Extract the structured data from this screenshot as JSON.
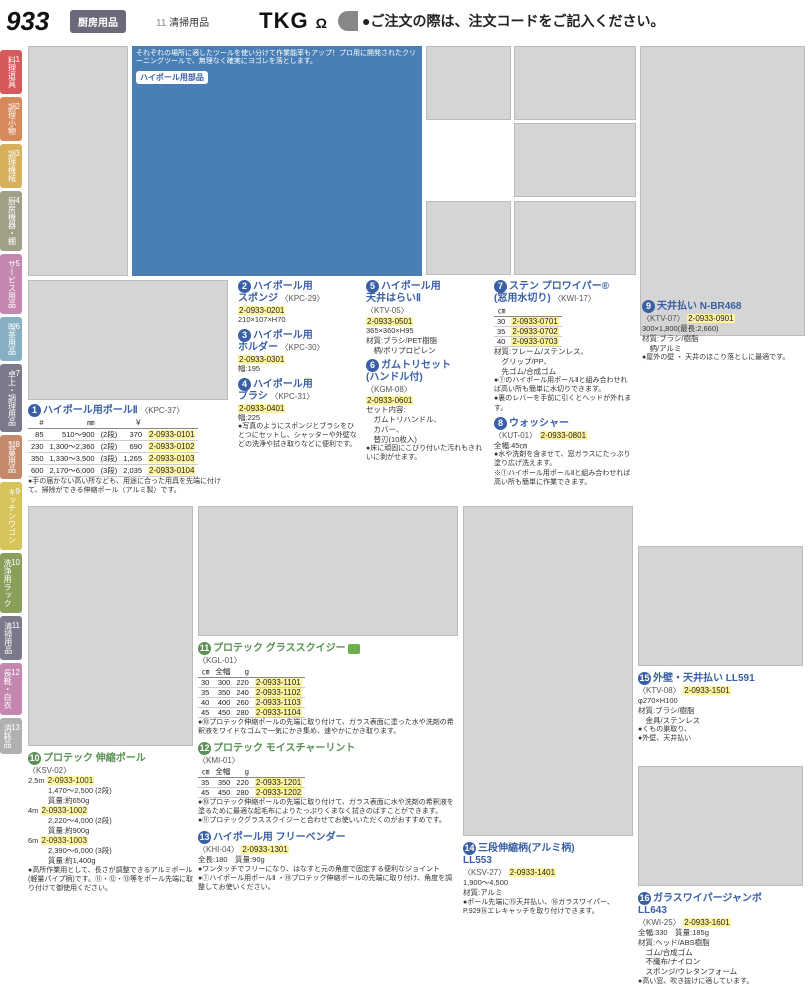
{
  "header": {
    "page_num": "933",
    "category": "厨房用品",
    "sub_num": "11",
    "sub_label": "清掃用品",
    "brand": "TKG",
    "notice": "●ご注文の際は、注文コードをご記入ください。"
  },
  "sidebar": [
    {
      "n": "1",
      "label": "料理道具",
      "color": "#d65a5a"
    },
    {
      "n": "2",
      "label": "調理小物",
      "color": "#d68a5a"
    },
    {
      "n": "3",
      "label": "調理機械",
      "color": "#d6b05a"
    },
    {
      "n": "4",
      "label": "厨房機器・棚",
      "color": "#a0a088"
    },
    {
      "n": "5",
      "label": "サービス用品",
      "color": "#c488b0"
    },
    {
      "n": "6",
      "label": "喫茶用品",
      "color": "#88b0c4"
    },
    {
      "n": "7",
      "label": "卓上・調理用品",
      "color": "#7a7a8a"
    },
    {
      "n": "8",
      "label": "製菓用品",
      "color": "#c4886a"
    },
    {
      "n": "9",
      "label": "キッチンワゴン",
      "color": "#d6c45a"
    },
    {
      "n": "10",
      "label": "洗浄用ラック",
      "color": "#8aa05a"
    },
    {
      "n": "11",
      "label": "清掃用品",
      "color": "#7a7a8a"
    },
    {
      "n": "12",
      "label": "長靴・白衣",
      "color": "#c488b0"
    },
    {
      "n": "13",
      "label": "消耗品",
      "color": "#b0b0b0"
    }
  ],
  "diagram": {
    "intro": "それぞれの場所に適したツールを使い分けて作業能率もアップ！プロ用に開発されたクリーニングツールで、無理なく確実にヨゴレを落とします。",
    "label_parts": "ハイポール用部品"
  },
  "products": {
    "p1": {
      "num": "1",
      "title": "ハイポール用ポールⅡ",
      "sub": "〈KPC-37〉",
      "table_head": [
        "#",
        "㎜",
        "",
        "￥",
        ""
      ],
      "rows": [
        [
          "85",
          "510～900",
          "(2段)",
          "370",
          "2-0933-0101"
        ],
        [
          "230",
          "1,300～2,360",
          "(2段)",
          "690",
          "2-0933-0102"
        ],
        [
          "350",
          "1,330～3,500",
          "(3段)",
          "1,265",
          "2-0933-0103"
        ],
        [
          "600",
          "2,170～6,000",
          "(3段)",
          "2,035",
          "2-0933-0104"
        ]
      ],
      "note": "●手の届かない高い所なども、用途に合った用具を先端に付けて、掃除ができる伸縮ポール（アルミ製）です。"
    },
    "p2": {
      "num": "2",
      "title": "ハイポール用\nスポンジ",
      "sub": "〈KPC-29〉",
      "code": "2-0933-0201",
      "spec": "210×107×H70"
    },
    "p3": {
      "num": "3",
      "title": "ハイポール用\nホルダー",
      "sub": "〈KPC-30〉",
      "code": "2-0933-0301",
      "spec": "幅:195"
    },
    "p4": {
      "num": "4",
      "title": "ハイポール用\nブラシ",
      "sub": "〈KPC-31〉",
      "code": "2-0933-0401",
      "spec": "幅:225",
      "note": "●写真のようにスポンジとブラシをひとつにセットし、シャッターや外壁などの洗浄や拭き取りなどに便利です。"
    },
    "p5": {
      "num": "5",
      "title": "ハイポール用\n天井はらいⅡ",
      "sub": "〈KTV-05〉",
      "code": "2-0933-0501",
      "spec": "365×360×H95\n材質:ブラシ/PET樹脂\n　柄/ポリプロピレン"
    },
    "p6": {
      "num": "6",
      "title": "ガムトリセット\n(ハンドル付)",
      "sub": "〈KGM-08〉",
      "code": "2-0933-0601",
      "spec": "セット内容:\n　ガムトリハンドル、\n　カバー、\n　替刃(10枚入)",
      "note": "●床に頑固にこびり付いた汚れもきれいに剥がせます。"
    },
    "p7": {
      "num": "7",
      "title": "ステン プロワイパー®\n(窓用水切り)",
      "sub": "〈KWI-17〉",
      "rows": [
        [
          "30",
          "2-0933-0701"
        ],
        [
          "35",
          "2-0933-0702"
        ],
        [
          "40",
          "2-0933-0703"
        ]
      ],
      "spec": "材質:フレーム/ステンレス、\n　グリップ/PP、\n　先ゴム/合成ゴム",
      "note": "●①のハイポール用ポールⅡと組み合わせれば高い所も簡単に水切りできます。\n●裏のレバーを手前に引くとヘッドが外れます。"
    },
    "p8": {
      "num": "8",
      "title": "ウォッシャー",
      "sub": "〈KUT-01〉",
      "code": "2-0933-0801",
      "spec": "全幅:45㎝",
      "note": "●水や洗剤を含ませて、窓ガラスにたっぷり塗り広げ洗えます。\n※①ハイポール用ポールⅡと組み合わせれば高い所も簡単に作業できます。"
    },
    "p9": {
      "num": "9",
      "title": "天井払い N-BR468",
      "sub": "〈KTV-07〉",
      "code": "2-0933-0901",
      "spec": "300×1,800(最長:2,660)\n材質:ブラシ/樹脂\n　柄/アルミ",
      "note": "●屋外の壁 ・ 天井のほこり落としに最適です。"
    },
    "p10": {
      "num": "10",
      "title": "プロテック 伸縮ポール",
      "sub": "〈KSV-02〉",
      "rows": [
        [
          "2.5m",
          "2-0933-1001",
          "1,470～2,500 (2段)\n質量:約650g"
        ],
        [
          "4m",
          "2-0933-1002",
          "2,220～4,000 (2段)\n質量:約900g"
        ],
        [
          "6m",
          "2-0933-1003",
          "2,390～6,000 (3段)\n質量:約1,400g"
        ]
      ],
      "note": "●高所作業用として、長さが調整できるアルミポール(軽量パイプ柄)です。⑪・⑫・⑬等をポール先端に取り付けて御使用ください。"
    },
    "p11": {
      "num": "11",
      "title": "プロテック グラススクイジー",
      "sub": "〈KGL-01〉",
      "head": [
        "㎝",
        "全幅",
        "g",
        ""
      ],
      "rows": [
        [
          "30",
          "300",
          "220",
          "2-0933-1101"
        ],
        [
          "35",
          "350",
          "240",
          "2-0933-1102"
        ],
        [
          "40",
          "400",
          "260",
          "2-0933-1103"
        ],
        [
          "45",
          "450",
          "280",
          "2-0933-1104"
        ]
      ],
      "note": "●⑩プロテック伸縮ポールの先端に取り付けて、ガラス表面に塗った水や洗剤の希釈液をワイドなゴムで一気にかき集め、速やかにかき取ります。"
    },
    "p12": {
      "num": "12",
      "title": "プロテック モイスチャーリント",
      "sub": "〈KMI-01〉",
      "head": [
        "㎝",
        "全幅",
        "g",
        ""
      ],
      "rows": [
        [
          "35",
          "350",
          "220",
          "2-0933-1201"
        ],
        [
          "45",
          "450",
          "280",
          "2-0933-1202"
        ]
      ],
      "note": "●⑩プロテック伸縮ポールの先端に取り付けて、ガラス表面に水や洗剤の希釈液を塗るために最適な起毛布によりたっぷりくまなく拭きのばすことができます。\n●⑪プロテックグラススクイジーと合わせてお使いいただくのがおすすめです。"
    },
    "p13": {
      "num": "13",
      "title": "ハイポール用 フリーベンダー",
      "sub": "〈KHI-04〉",
      "code": "2-0933-1301",
      "spec": "全長:180　質量:90g",
      "note": "●ワンタッチでフリーになり、はなすと元の角度で固定する便利なジョイント\n●①ハイポール用ポールⅡ ・⑩プロテック伸縮ポールの先端に取り付け、角度を調整してお使いください。"
    },
    "p14": {
      "num": "14",
      "title": "三段伸縮柄(アルミ柄)\nLL553",
      "sub": "〈KSV-27〉",
      "code": "2-0933-1401",
      "spec": "1,900～4,500\n材質:アルミ",
      "note": "●ポール先端に⑮天井払い、⑯ガラスワイパー、P.929⑯エレキャッチを取り付けできます。"
    },
    "p15": {
      "num": "15",
      "title": "外壁・天井払い LL591",
      "sub": "〈KTV-08〉",
      "code": "2-0933-1501",
      "spec": "φ270×H100\n材質:ブラシ/樹脂\n　金具/ステンレス",
      "note": "●くもの巣取り、\n●外壁、天井払い"
    },
    "p16": {
      "num": "16",
      "title": "ガラスワイパージャンボ\nLL643",
      "sub": "〈KWI-25〉",
      "code": "2-0933-1601",
      "spec": "全幅:330　質量:185g\n材質:ヘッド/ABS樹脂\n　ゴム/合成ゴム\n　不織布/ナイロン\n　スポンジ/ウレタンフォーム",
      "note": "●高い窓、吹き抜けに適しています。"
    }
  }
}
